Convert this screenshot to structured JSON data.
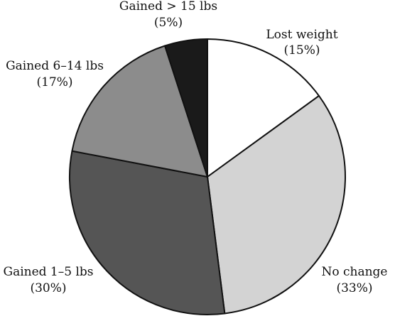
{
  "chart_data": {
    "type": "pie",
    "title": "",
    "start_angle_deg": 0,
    "direction": "clockwise",
    "slices": [
      {
        "label": "Lost weight",
        "percent_text": "(15%)",
        "value": 15,
        "color": "#ffffff"
      },
      {
        "label": "No change",
        "percent_text": "(33%)",
        "value": 33,
        "color": "#d3d3d3"
      },
      {
        "label": "Gained 1–5 lbs",
        "percent_text": "(30%)",
        "value": 30,
        "color": "#555555"
      },
      {
        "label": "Gained 6–14 lbs",
        "percent_text": "(17%)",
        "value": 17,
        "color": "#8c8c8c"
      },
      {
        "label": "Gained > 15 lbs",
        "percent_text": "(5%)",
        "value": 5,
        "color": "#1a1a1a"
      }
    ],
    "border_color": "#111111"
  }
}
